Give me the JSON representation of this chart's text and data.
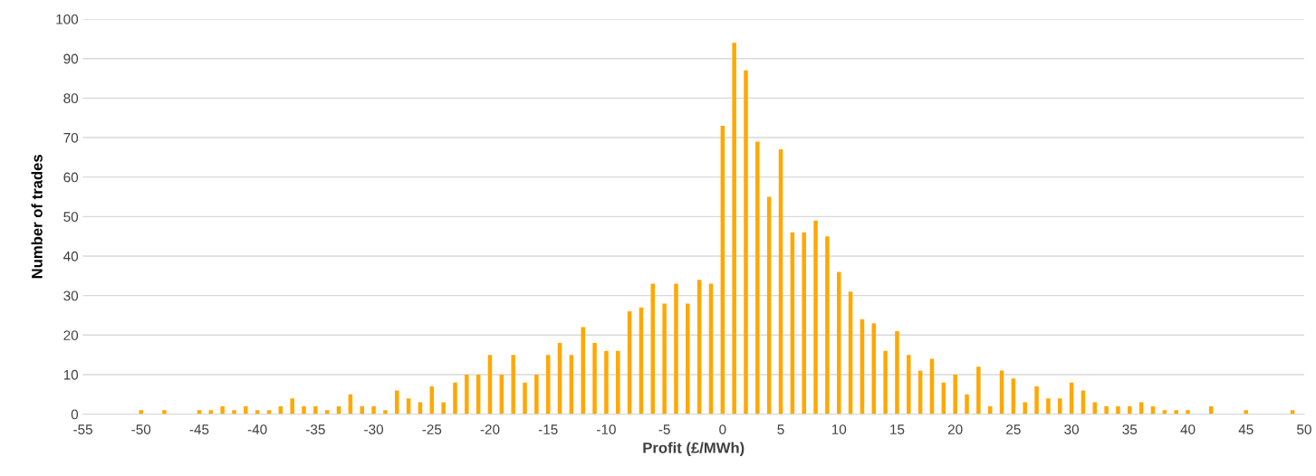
{
  "chart_data": {
    "type": "bar",
    "xlabel": "Profit (£/MWh)",
    "ylabel": "Number of trades",
    "x": [
      -50,
      -49,
      -48,
      -47,
      -46,
      -45,
      -44,
      -43,
      -42,
      -41,
      -40,
      -39,
      -38,
      -37,
      -36,
      -35,
      -34,
      -33,
      -32,
      -31,
      -30,
      -29,
      -28,
      -27,
      -26,
      -25,
      -24,
      -23,
      -22,
      -21,
      -20,
      -19,
      -18,
      -17,
      -16,
      -15,
      -14,
      -13,
      -12,
      -11,
      -10,
      -9,
      -8,
      -7,
      -6,
      -5,
      -4,
      -3,
      -2,
      -1,
      0,
      1,
      2,
      3,
      4,
      5,
      6,
      7,
      8,
      9,
      10,
      11,
      12,
      13,
      14,
      15,
      16,
      17,
      18,
      19,
      20,
      21,
      22,
      23,
      24,
      25,
      26,
      27,
      28,
      29,
      30,
      31,
      32,
      33,
      34,
      35,
      36,
      37,
      38,
      39,
      40,
      41,
      42,
      43,
      44,
      45,
      46,
      47,
      48,
      49
    ],
    "values": [
      1,
      0,
      1,
      0,
      0,
      1,
      1,
      2,
      1,
      2,
      1,
      1,
      2,
      4,
      2,
      2,
      1,
      2,
      5,
      2,
      2,
      1,
      6,
      4,
      3,
      7,
      3,
      8,
      10,
      10,
      15,
      10,
      15,
      8,
      10,
      15,
      18,
      15,
      22,
      18,
      16,
      16,
      26,
      27,
      33,
      28,
      33,
      28,
      34,
      33,
      73,
      94,
      87,
      69,
      55,
      67,
      46,
      46,
      49,
      45,
      36,
      31,
      24,
      23,
      16,
      21,
      15,
      11,
      14,
      8,
      10,
      5,
      12,
      2,
      11,
      9,
      3,
      7,
      4,
      4,
      8,
      6,
      3,
      2,
      2,
      2,
      3,
      2,
      1,
      1,
      1,
      0,
      2,
      0,
      0,
      1,
      0,
      0,
      0,
      1
    ],
    "color": "#ffa800",
    "xlim": [
      -55,
      50
    ],
    "xticks": [
      -55,
      -50,
      -45,
      -40,
      -35,
      -30,
      -25,
      -20,
      -15,
      -10,
      -5,
      0,
      5,
      10,
      15,
      20,
      25,
      30,
      35,
      40,
      45,
      50
    ],
    "ylim": [
      0,
      100
    ],
    "yticks": [
      0,
      10,
      20,
      30,
      40,
      50,
      60,
      70,
      80,
      90,
      100
    ],
    "grid": "y",
    "legend": false
  }
}
